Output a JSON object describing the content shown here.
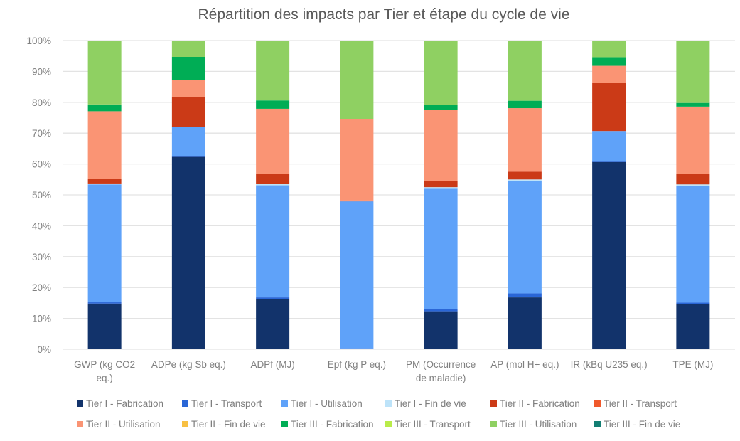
{
  "chart_data": {
    "type": "bar",
    "stacked": "percent",
    "title": "Répartition des impacts par Tier et étape du cycle de vie",
    "xlabel": "",
    "ylabel": "",
    "ylim": [
      0,
      100
    ],
    "y_ticks": [
      "0%",
      "10%",
      "20%",
      "30%",
      "40%",
      "50%",
      "60%",
      "70%",
      "80%",
      "90%",
      "100%"
    ],
    "grid": true,
    "legend_position": "bottom",
    "categories": [
      [
        "GWP (kg CO2",
        "eq.)"
      ],
      [
        "ADPe (kg Sb eq.)"
      ],
      [
        "ADPf (MJ)"
      ],
      [
        "Epf (kg P eq.)"
      ],
      [
        "PM (Occurrence",
        "de maladie)"
      ],
      [
        "AP (mol H+ eq.)"
      ],
      [
        "IR (kBq U235 eq.)"
      ],
      [
        "TPE (MJ)"
      ]
    ],
    "series": [
      {
        "name": "Tier I - Fabrication",
        "color": "#12336b",
        "values": [
          14.8,
          62.3,
          16.3,
          0.0,
          12.3,
          16.8,
          60.7,
          14.6
        ]
      },
      {
        "name": "Tier I - Transport",
        "color": "#2a66d6",
        "values": [
          0.4,
          0.2,
          0.5,
          0.3,
          0.8,
          1.3,
          0.1,
          0.5
        ]
      },
      {
        "name": "Tier I - Utilisation",
        "color": "#5fa2f9",
        "values": [
          38.2,
          9.5,
          36.3,
          47.6,
          38.9,
          36.3,
          9.9,
          37.9
        ]
      },
      {
        "name": "Tier I - Fin de vie",
        "color": "#bde3f9",
        "values": [
          0.3,
          0.0,
          0.5,
          0.0,
          0.5,
          0.6,
          0.0,
          0.4
        ]
      },
      {
        "name": "Tier II - Fabrication",
        "color": "#cb3a17",
        "values": [
          1.4,
          9.6,
          3.3,
          0.3,
          2.1,
          2.5,
          15.5,
          3.3
        ]
      },
      {
        "name": "Tier II - Transport",
        "color": "#f0592b",
        "values": [
          0.0,
          0.0,
          0.0,
          0.0,
          0.0,
          0.0,
          0.0,
          0.0
        ]
      },
      {
        "name": "Tier II - Utilisation",
        "color": "#fa9474",
        "values": [
          22.0,
          5.5,
          21.0,
          26.3,
          22.9,
          20.6,
          5.6,
          21.9
        ]
      },
      {
        "name": "Tier II - Fin de vie",
        "color": "#f8c042",
        "values": [
          0.0,
          0.0,
          0.0,
          0.0,
          0.0,
          0.0,
          0.0,
          0.0
        ]
      },
      {
        "name": "Tier III - Fabrication",
        "color": "#00ad55",
        "values": [
          2.2,
          7.6,
          2.7,
          0.0,
          1.7,
          2.4,
          2.8,
          1.2
        ]
      },
      {
        "name": "Tier III - Transport",
        "color": "#b9ec4a",
        "values": [
          0.0,
          0.0,
          0.0,
          0.0,
          0.0,
          0.0,
          0.0,
          0.0
        ]
      },
      {
        "name": "Tier III - Utilisation",
        "color": "#8fd062",
        "values": [
          20.7,
          5.3,
          19.2,
          25.5,
          20.8,
          19.3,
          5.4,
          20.2
        ]
      },
      {
        "name": "Tier III - Fin de vie",
        "color": "#137e73",
        "values": [
          0.0,
          0.0,
          0.2,
          0.0,
          0.0,
          0.2,
          0.0,
          0.0
        ]
      }
    ]
  },
  "colors": {
    "gridline": "#e3e3e3",
    "text": "#7f7f7f",
    "title": "#595959"
  }
}
